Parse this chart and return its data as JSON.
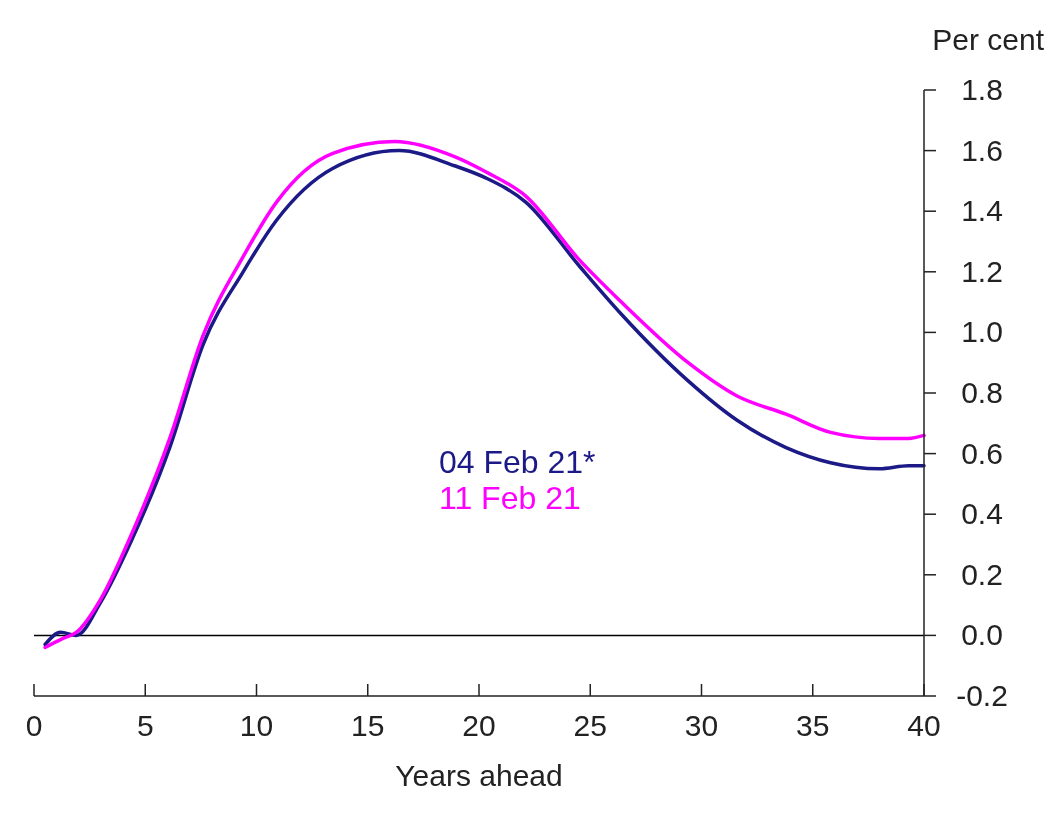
{
  "chart_data": {
    "type": "line",
    "xlabel": "Years ahead",
    "ylabel": "Per cent",
    "xlim": [
      0,
      40
    ],
    "xticks": [
      0,
      5,
      10,
      15,
      20,
      25,
      30,
      35,
      40
    ],
    "ylim": [
      -0.2,
      1.8
    ],
    "yticks": [
      {
        "value": -0.2,
        "label": "-0.2"
      },
      {
        "value": 0,
        "label": "0.0"
      },
      0.2,
      0.4,
      0.6,
      0.8,
      {
        "value": 1,
        "label": "1.0"
      },
      1.2,
      1.4,
      1.6,
      1.8
    ],
    "ref_lines": [
      {
        "axis": "y",
        "value": 0,
        "color": "#000000"
      }
    ],
    "legend": "center",
    "grid": false,
    "series": [
      {
        "name": "04 Feb 21*",
        "color": "#1c1a86",
        "x": [
          0.5,
          1.2,
          1.9,
          3,
          4.3,
          6.1,
          7.6,
          9.4,
          10.9,
          13.4,
          16.4,
          18.9,
          20.3,
          22.1,
          24.5,
          26.4,
          29.4,
          31.6,
          33.8,
          35.8,
          38,
          39.3,
          40
        ],
        "values": [
          -0.03,
          0.01,
          0,
          0.11,
          0.3,
          0.62,
          0.96,
          1.2,
          1.37,
          1.54,
          1.6,
          1.55,
          1.51,
          1.43,
          1.22,
          1.06,
          0.84,
          0.71,
          0.62,
          0.57,
          0.55,
          0.56,
          0.56
        ]
      },
      {
        "name": "11 Feb 21",
        "color": "#ff00ff",
        "x": [
          0.5,
          1.3,
          1.9,
          3,
          4.3,
          6.1,
          7.6,
          9.4,
          10.9,
          13.4,
          16.2,
          18.9,
          20.3,
          22.1,
          24.5,
          26.4,
          29.4,
          31.6,
          33.8,
          35.8,
          38,
          39.3,
          40
        ],
        "values": [
          -0.04,
          -0.01,
          0.01,
          0.12,
          0.32,
          0.65,
          0.99,
          1.25,
          1.43,
          1.59,
          1.63,
          1.58,
          1.53,
          1.45,
          1.24,
          1.1,
          0.9,
          0.79,
          0.73,
          0.67,
          0.65,
          0.65,
          0.66
        ]
      }
    ]
  }
}
